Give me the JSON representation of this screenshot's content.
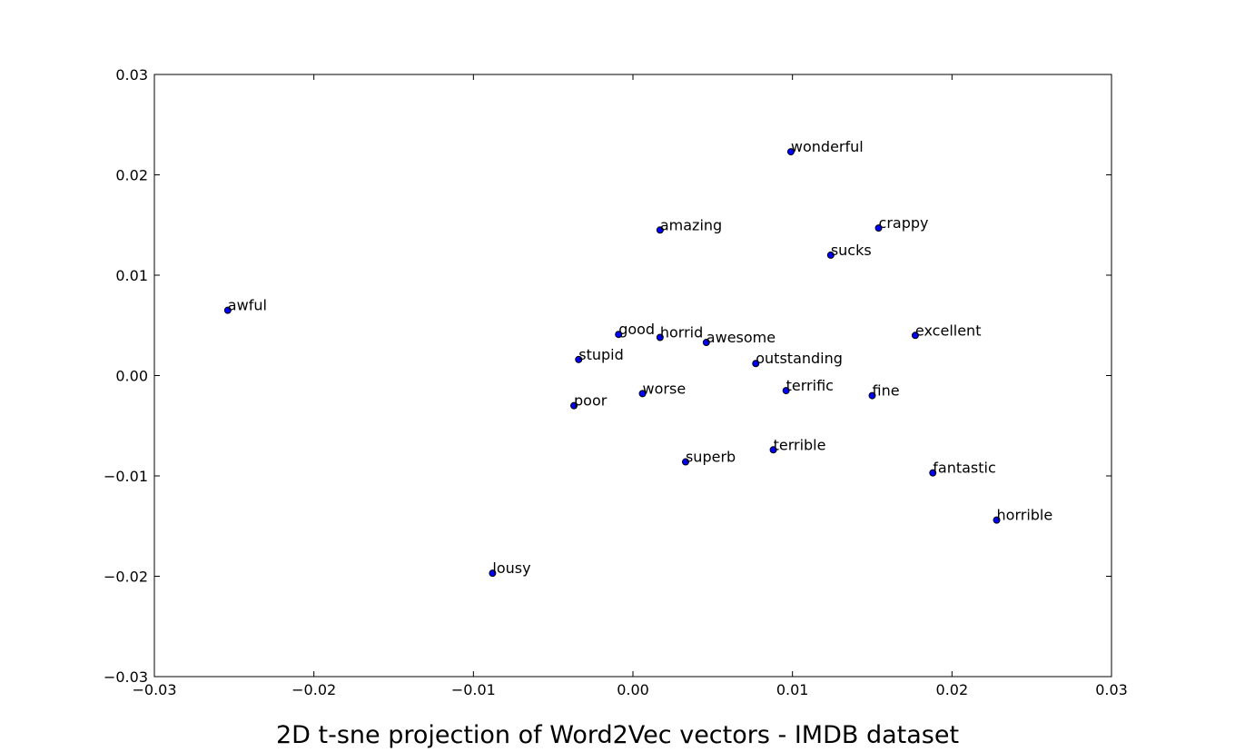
{
  "chart_data": {
    "type": "scatter",
    "title": "2D t-sne projection of Word2Vec vectors - IMDB dataset",
    "xlabel": "",
    "ylabel": "",
    "xlim": [
      -0.03,
      0.03
    ],
    "ylim": [
      -0.03,
      0.03
    ],
    "xticks": [
      -0.03,
      -0.02,
      -0.01,
      0.0,
      0.01,
      0.02,
      0.03
    ],
    "yticks": [
      -0.03,
      -0.02,
      -0.01,
      0.0,
      0.01,
      0.02,
      0.03
    ],
    "xtick_labels": [
      "−0.03",
      "−0.02",
      "−0.01",
      "0.00",
      "0.01",
      "0.02",
      "0.03"
    ],
    "ytick_labels": [
      "−0.03",
      "−0.02",
      "−0.01",
      "0.00",
      "0.01",
      "0.02",
      "0.03"
    ],
    "grid": false,
    "marker_color": "#0000ff",
    "points": [
      {
        "label": "awful",
        "x": -0.0254,
        "y": 0.0065
      },
      {
        "label": "lousy",
        "x": -0.0088,
        "y": -0.0197
      },
      {
        "label": "poor",
        "x": -0.0037,
        "y": -0.003
      },
      {
        "label": "stupid",
        "x": -0.0034,
        "y": 0.0016
      },
      {
        "label": "good",
        "x": -0.0009,
        "y": 0.0041
      },
      {
        "label": "worse",
        "x": 0.0006,
        "y": -0.0018
      },
      {
        "label": "amazing",
        "x": 0.0017,
        "y": 0.0145
      },
      {
        "label": "horrid",
        "x": 0.0017,
        "y": 0.0038
      },
      {
        "label": "superb",
        "x": 0.0033,
        "y": -0.0086
      },
      {
        "label": "awesome",
        "x": 0.0046,
        "y": 0.0033
      },
      {
        "label": "outstanding",
        "x": 0.0077,
        "y": 0.0012
      },
      {
        "label": "terrible",
        "x": 0.0088,
        "y": -0.0074
      },
      {
        "label": "terrific",
        "x": 0.0096,
        "y": -0.0015
      },
      {
        "label": "wonderful",
        "x": 0.0099,
        "y": 0.0223
      },
      {
        "label": "sucks",
        "x": 0.0124,
        "y": 0.012
      },
      {
        "label": "fine",
        "x": 0.015,
        "y": -0.002
      },
      {
        "label": "crappy",
        "x": 0.0154,
        "y": 0.0147
      },
      {
        "label": "excellent",
        "x": 0.0177,
        "y": 0.004
      },
      {
        "label": "fantastic",
        "x": 0.0188,
        "y": -0.0097
      },
      {
        "label": "horrible",
        "x": 0.0228,
        "y": -0.0144
      }
    ]
  }
}
